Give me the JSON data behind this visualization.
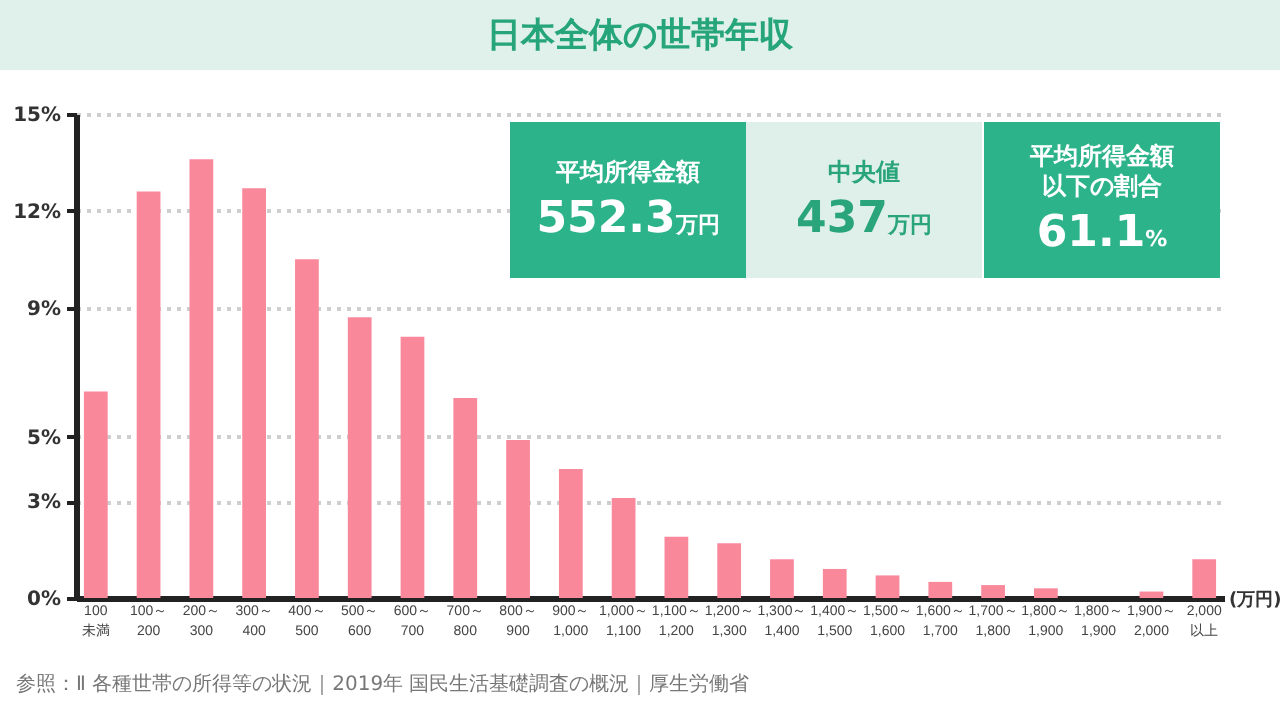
{
  "chart_data": {
    "type": "bar",
    "title": "日本全体の世帯年収",
    "xlabel": "(万円)",
    "categories": [
      "100\n未満",
      "100～\n200",
      "200～\n300",
      "300～\n400",
      "400～\n500",
      "500～\n600",
      "600～\n700",
      "700～\n800",
      "800～\n900",
      "900～\n1,000",
      "1,000～\n1,100",
      "1,100～\n1,200",
      "1,200～\n1,300",
      "1,300～\n1,400",
      "1,400～\n1,500",
      "1,500～\n1,600",
      "1,600～\n1,700",
      "1,700～\n1,800",
      "1,800～\n1,900",
      "1,800～\n1,900",
      "1,900～\n2,000",
      "2,000\n以上"
    ],
    "values": [
      6.4,
      12.6,
      13.6,
      12.7,
      10.5,
      8.7,
      8.1,
      6.2,
      4.9,
      4.0,
      3.1,
      1.9,
      1.7,
      1.2,
      0.9,
      0.7,
      0.5,
      0.4,
      0.3,
      null,
      0.2,
      1.2
    ],
    "color": "#f9889b",
    "ylim": [
      0,
      15
    ],
    "yticks": [
      {
        "value": 0,
        "label": "0%"
      },
      {
        "value": 3,
        "label": "3%"
      },
      {
        "value": 5,
        "label": "5%"
      },
      {
        "value": 9,
        "label": "9%"
      },
      {
        "value": 12,
        "label": "12%"
      },
      {
        "value": 15,
        "label": "15%"
      }
    ],
    "grid": "y",
    "annotations": [
      "平均所得金額",
      "552.3万円",
      "中央値",
      "437万円",
      "平均所得金額以下の割合",
      "61.1%",
      "参照：Ⅱ 各種世帯の所得等の状況｜2019年 国民生活基礎調査の概況｜厚生労働省"
    ]
  }
}
